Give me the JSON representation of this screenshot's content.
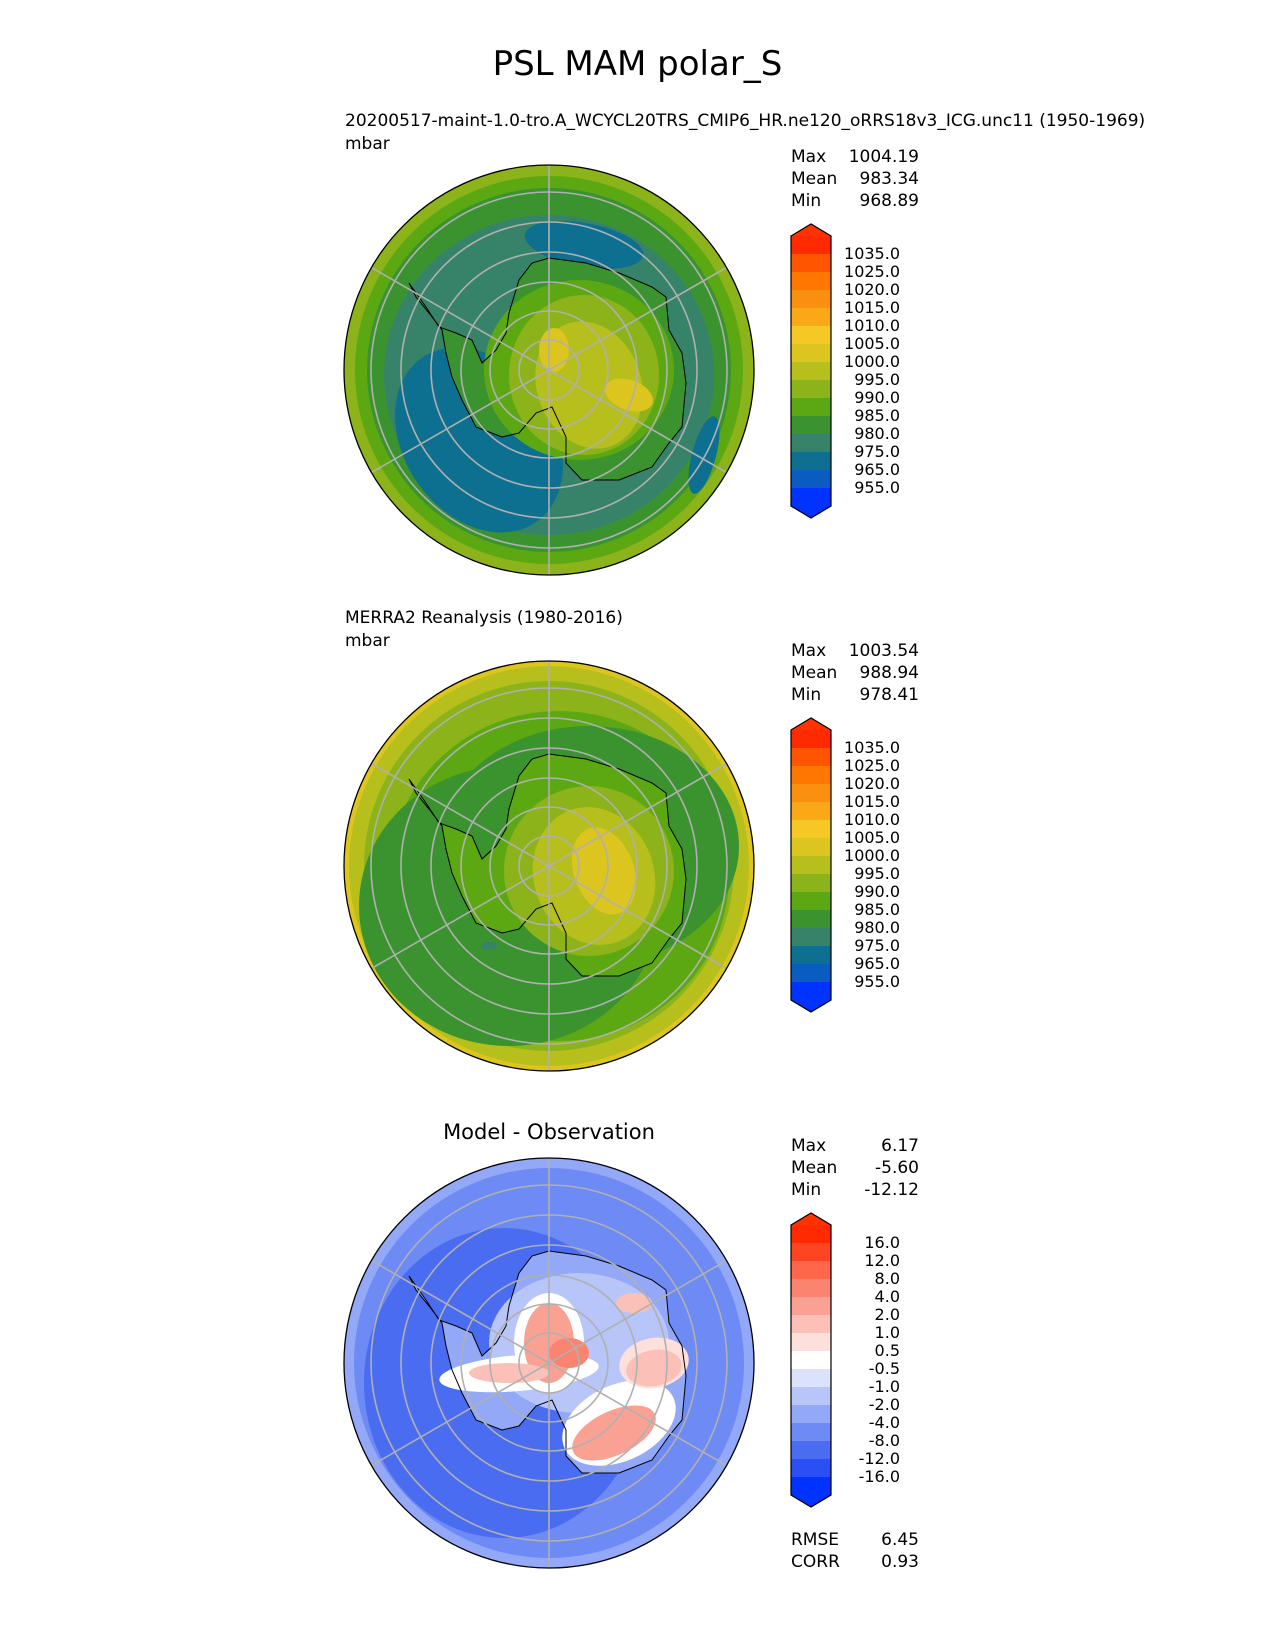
{
  "title": "PSL MAM polar_S",
  "chart_data": [
    {
      "type": "heatmap",
      "projection": "south-polar-stereographic",
      "title": "20200517-maint-1.0-tro.A_WCYCL20TRS_CMIP6_HR.ne120_oRRS18v3_ICG.unc11 (1950-1969)",
      "units": "mbar",
      "stats": [
        {
          "label": "Max",
          "value": "1004.19"
        },
        {
          "label": "Mean",
          "value": "983.34"
        },
        {
          "label": "Min",
          "value": "968.89"
        }
      ],
      "colorbar": {
        "levels": [
          "1035.0",
          "1025.0",
          "1020.0",
          "1015.0",
          "1010.0",
          "1005.0",
          "1000.0",
          "995.0",
          "990.0",
          "985.0",
          "980.0",
          "975.0",
          "965.0",
          "955.0"
        ],
        "colors_top_to_bottom": [
          "#ff2a00",
          "#ff5500",
          "#ff7700",
          "#fb9010",
          "#fba818",
          "#f6c826",
          "#dcc51f",
          "#b6bf1c",
          "#8cb31a",
          "#5ca812",
          "#3b9330",
          "#36836a",
          "#0e7090",
          "#0a5cc0",
          "#0033ff"
        ],
        "extend_colors": [
          "#ff3300",
          "#0033ff"
        ]
      }
    },
    {
      "type": "heatmap",
      "projection": "south-polar-stereographic",
      "title": "MERRA2 Reanalysis (1980-2016)",
      "units": "mbar",
      "stats": [
        {
          "label": "Max",
          "value": "1003.54"
        },
        {
          "label": "Mean",
          "value": "988.94"
        },
        {
          "label": "Min",
          "value": "978.41"
        }
      ],
      "colorbar": {
        "levels": [
          "1035.0",
          "1025.0",
          "1020.0",
          "1015.0",
          "1010.0",
          "1005.0",
          "1000.0",
          "995.0",
          "990.0",
          "985.0",
          "980.0",
          "975.0",
          "965.0",
          "955.0"
        ],
        "colors_top_to_bottom": [
          "#ff2a00",
          "#ff5500",
          "#ff7700",
          "#fb9010",
          "#fba818",
          "#f6c826",
          "#dcc51f",
          "#b6bf1c",
          "#8cb31a",
          "#5ca812",
          "#3b9330",
          "#36836a",
          "#0e7090",
          "#0a5cc0",
          "#0033ff"
        ],
        "extend_colors": [
          "#ff3300",
          "#0033ff"
        ]
      }
    },
    {
      "type": "heatmap",
      "projection": "south-polar-stereographic",
      "title": "Model - Observation",
      "stats": [
        {
          "label": "Max",
          "value": "6.17"
        },
        {
          "label": "Mean",
          "value": "-5.60"
        },
        {
          "label": "Min",
          "value": "-12.12"
        }
      ],
      "metrics": [
        {
          "label": "RMSE",
          "value": "6.45"
        },
        {
          "label": "CORR",
          "value": "0.93"
        }
      ],
      "colorbar": {
        "levels": [
          "16.0",
          "12.0",
          "8.0",
          "4.0",
          "2.0",
          "1.0",
          "0.5",
          "-0.5",
          "-1.0",
          "-2.0",
          "-4.0",
          "-8.0",
          "-12.0",
          "-16.0"
        ],
        "colors_top_to_bottom": [
          "#ff2a00",
          "#ff4422",
          "#ff664a",
          "#fa846f",
          "#f9a294",
          "#fbc1b8",
          "#fde0dc",
          "#ffffff",
          "#dbe2fc",
          "#b7c5f9",
          "#93a8f7",
          "#6d8af5",
          "#4a6cf0",
          "#2a4ff5",
          "#0033ff"
        ],
        "extend_colors": [
          "#ff3300",
          "#0033ff"
        ]
      }
    }
  ]
}
